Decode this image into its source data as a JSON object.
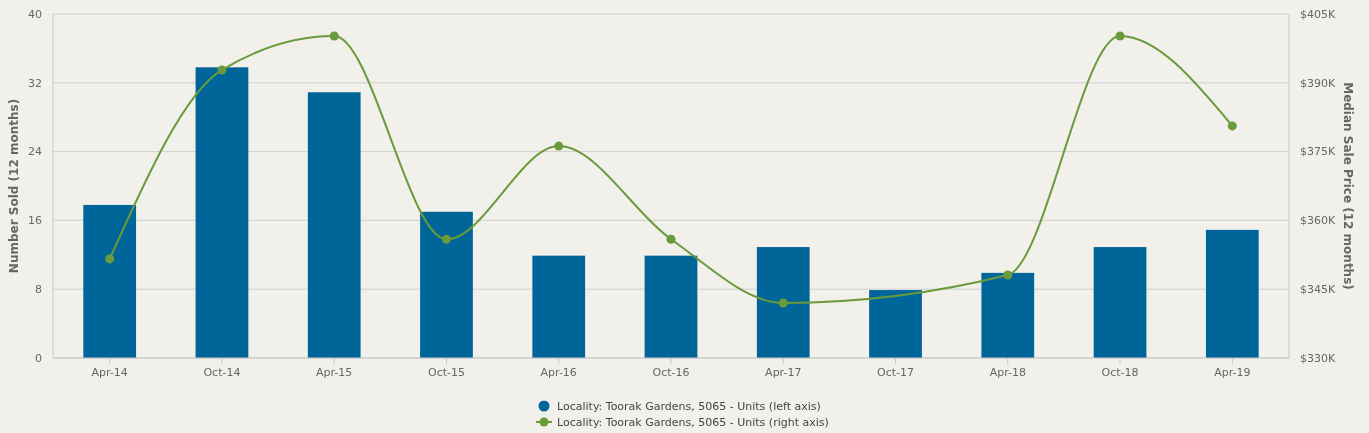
{
  "chart_data": {
    "type": "bar",
    "categories": [
      "Apr-14",
      "Oct-14",
      "Apr-15",
      "Oct-15",
      "Apr-16",
      "Oct-16",
      "Apr-17",
      "Oct-17",
      "Apr-18",
      "Oct-18",
      "Apr-19"
    ],
    "ylabel": "Number Sold (12 months)",
    "y2label": "Median Sale Price (12 months)",
    "ylim": [
      0,
      40
    ],
    "yticks": [
      0,
      8,
      16,
      24,
      32,
      40
    ],
    "y2lim": [
      330,
      405
    ],
    "y2ticks": [
      {
        "value": 330,
        "label": "$330K"
      },
      {
        "value": 345,
        "label": "$345K"
      },
      {
        "value": 360,
        "label": "$360K"
      },
      {
        "value": 375,
        "label": "$375K"
      },
      {
        "value": 390,
        "label": "$390K"
      },
      {
        "value": 405,
        "label": "$405K"
      }
    ],
    "grid": "y",
    "legend": "bottom",
    "marker": "circle",
    "line_style": "solid",
    "series": [
      {
        "name": "Locality: Toorak Gardens, 5065 - Units (left axis)",
        "color": "#006699",
        "values": [
          17.8,
          33.8,
          30.9,
          17,
          11.9,
          11.9,
          12.9,
          7.9,
          9.9,
          12.9,
          14.9
        ]
      },
      {
        "name": "Locality: Toorak Gardens, 5065 - Units (right axis)",
        "type": "line",
        "axis": "y2",
        "color": "#6a9a3a",
        "values": [
          351.6,
          392.8,
          400.2,
          355.9,
          376.2,
          355.9,
          342,
          null,
          348.1,
          400.2,
          380.6
        ]
      }
    ]
  }
}
